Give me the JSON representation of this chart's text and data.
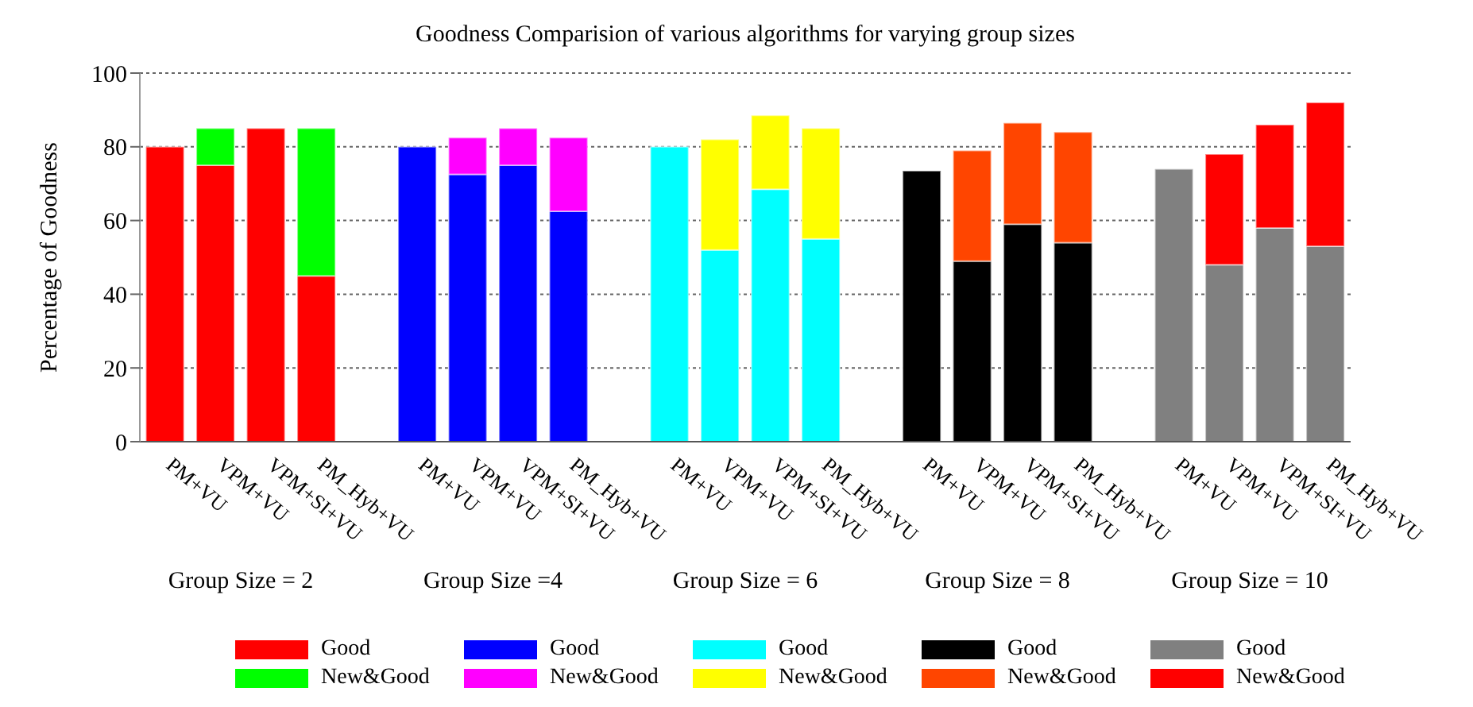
{
  "chart_data": {
    "type": "bar",
    "stacked": true,
    "title": "Goodness Comparision of various algorithms for varying group sizes",
    "ylabel": "Percentage of Goodness",
    "categories": [
      "PM+VU",
      "VPM+VU",
      "VPM+SI+VU",
      "PM_Hyb+VU",
      null,
      "PM+VU",
      "VPM+VU",
      "VPM+SI+VU",
      "PM_Hyb+VU",
      null,
      "PM+VU",
      "VPM+VU",
      "VPM+SI+VU",
      "PM_Hyb+VU",
      null,
      "PM+VU",
      "VPM+VU",
      "VPM+SI+VU",
      "PM_Hyb+VU",
      null,
      "PM+VU",
      "VPM+VU",
      "VPM+SI+VU",
      "PM_Hyb+VU"
    ],
    "series": [
      {
        "name": "Good",
        "color": "#ff0000",
        "values": [
          80,
          75,
          85,
          45,
          null,
          null,
          null,
          null,
          null,
          null,
          null,
          null,
          null,
          null,
          null,
          null,
          null,
          null,
          null,
          null,
          null,
          null,
          null,
          null
        ]
      },
      {
        "name": "New&Good",
        "color": "#00ff00",
        "values": [
          null,
          10,
          null,
          40,
          null,
          null,
          null,
          null,
          null,
          null,
          null,
          null,
          null,
          null,
          null,
          null,
          null,
          null,
          null,
          null,
          null,
          null,
          null,
          null
        ]
      },
      {
        "name": "Good",
        "color": "#0000ff",
        "values": [
          null,
          null,
          null,
          null,
          null,
          80,
          72.5,
          75,
          62.5,
          null,
          null,
          null,
          null,
          null,
          null,
          null,
          null,
          null,
          null,
          null,
          null,
          null,
          null,
          null
        ]
      },
      {
        "name": "New&Good",
        "color": "#ff00ff",
        "values": [
          null,
          null,
          null,
          null,
          null,
          null,
          10,
          10,
          20,
          null,
          null,
          null,
          null,
          null,
          null,
          null,
          null,
          null,
          null,
          null,
          null,
          null,
          null,
          null
        ]
      },
      {
        "name": "Good",
        "color": "#00ffff",
        "values": [
          null,
          null,
          null,
          null,
          null,
          null,
          null,
          null,
          null,
          null,
          80,
          52,
          68.5,
          55,
          null,
          null,
          null,
          null,
          null,
          null,
          null,
          null,
          null,
          null
        ]
      },
      {
        "name": "New&Good",
        "color": "#ffff00",
        "values": [
          null,
          null,
          null,
          null,
          null,
          null,
          null,
          null,
          null,
          null,
          null,
          30,
          20,
          30,
          null,
          null,
          null,
          null,
          null,
          null,
          null,
          null,
          null,
          null
        ]
      },
      {
        "name": "Good",
        "color": "#000000",
        "values": [
          null,
          null,
          null,
          null,
          null,
          null,
          null,
          null,
          null,
          null,
          null,
          null,
          null,
          null,
          null,
          73.5,
          49,
          59,
          54,
          null,
          null,
          null,
          null,
          null
        ]
      },
      {
        "name": "New&Good",
        "color": "#ff4500",
        "values": [
          null,
          null,
          null,
          null,
          null,
          null,
          null,
          null,
          null,
          null,
          null,
          null,
          null,
          null,
          null,
          null,
          30,
          27.5,
          30,
          null,
          null,
          null,
          null,
          null
        ]
      },
      {
        "name": "Good",
        "color": "#808080",
        "values": [
          null,
          null,
          null,
          null,
          null,
          null,
          null,
          null,
          null,
          null,
          null,
          null,
          null,
          null,
          null,
          null,
          null,
          null,
          null,
          null,
          74,
          48,
          58,
          53
        ]
      },
      {
        "name": "New&Good",
        "color": "#ff0000",
        "values": [
          null,
          null,
          null,
          null,
          null,
          null,
          null,
          null,
          null,
          null,
          null,
          null,
          null,
          null,
          null,
          null,
          null,
          null,
          null,
          null,
          null,
          30,
          28,
          39
        ]
      }
    ],
    "annotations": [
      "Group Size = 2",
      "Group Size =4",
      "Group Size = 6",
      "Group Size = 8",
      "Group Size = 10"
    ],
    "ylim": [
      0,
      100
    ],
    "yticks": [
      0,
      20,
      40,
      60,
      80,
      100
    ],
    "grid": "y",
    "legend": "bottom"
  }
}
